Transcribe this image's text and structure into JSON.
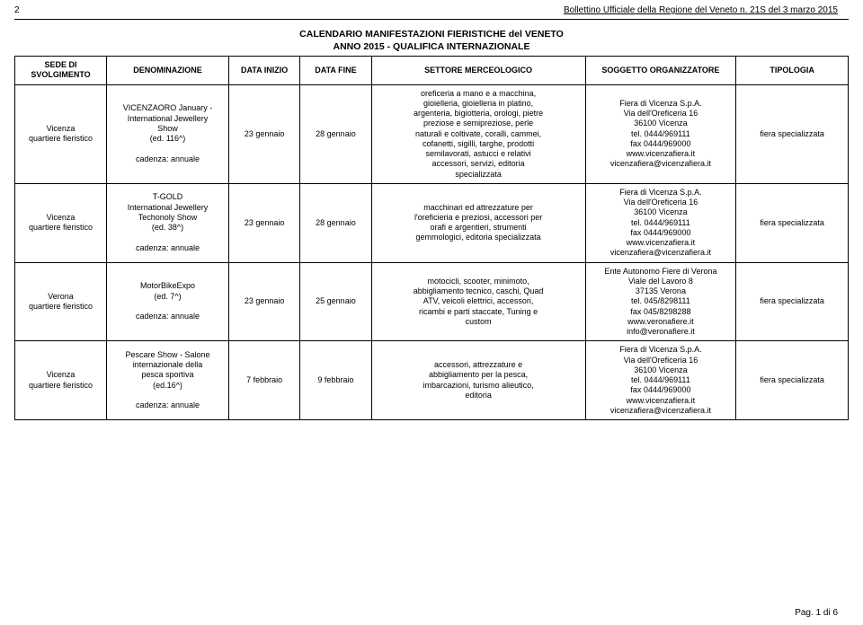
{
  "header_num": "2",
  "header_title": "Bollettino Ufficiale della Regione del Veneto n. 21S del 3 marzo 2015",
  "calendar_title": "CALENDARIO MANIFESTAZIONI FIERISTICHE del VENETO",
  "calendar_subtitle": "ANNO 2015 - QUALIFICA INTERNAZIONALE",
  "columns": {
    "sede": "SEDE DI SVOLGIMENTO",
    "denom": "DENOMINAZIONE",
    "inizio": "DATA INIZIO",
    "fine": "DATA FINE",
    "settore": "SETTORE MERCEOLOGICO",
    "soggetto": "SOGGETTO ORGANIZZATORE",
    "tipologia": "TIPOLOGIA"
  },
  "rows": [
    {
      "sede": "Vicenza\nquartiere fieristico",
      "denom": "VICENZAORO January -\nInternational Jewellery\nShow\n(ed. 116^)\n\ncadenza: annuale",
      "inizio": "23 gennaio",
      "fine": "28 gennaio",
      "settore": "oreficeria a mano e a macchina,\ngioielleria, gioielleria in platino,\nargenteria, bigiotteria, orologi, pietre\npreziose e semipreziose, perle\nnaturali e coltivate, coralli, cammei,\ncofanetti, sigilli, targhe, prodotti\nsemilavorati, astucci e relativi\naccessori, servizi, editoria\nspecializzata",
      "soggetto": "Fiera di Vicenza S.p.A.\nVia dell'Oreficeria 16\n36100 Vicenza\ntel. 0444/969111\nfax 0444/969000\nwww.vicenzafiera.it\nvicenzafiera@vicenzafiera.it",
      "tipologia": "fiera specializzata"
    },
    {
      "sede": "Vicenza\nquartiere fieristico",
      "denom": "T-GOLD\nInternational Jewellery\nTechonoly Show\n(ed. 38^)\n\ncadenza: annuale",
      "inizio": "23 gennaio",
      "fine": "28 gennaio",
      "settore": "macchinari ed attrezzature per\nl'oreficieria e preziosi, accessori per\norafi e argentieri, strumenti\ngemmologici, editoria specializzata",
      "soggetto": "Fiera di Vicenza S.p.A.\nVia dell'Oreficeria 16\n36100 Vicenza\ntel. 0444/969111\nfax 0444/969000\nwww.vicenzafiera.it\nvicenzafiera@vicenzafiera.it",
      "tipologia": "fiera specializzata"
    },
    {
      "sede": "Verona\nquartiere fieristico",
      "denom": "MotorBikeExpo\n(ed. 7^)\n\ncadenza: annuale",
      "inizio": "23 gennaio",
      "fine": "25 gennaio",
      "settore": "motocicli, scooter, minimoto,\nabbigliamento tecnico, caschi, Quad\nATV, veicoli elettrici, accessori,\nricambi e parti staccate, Tuning e\ncustom",
      "soggetto": "Ente Autonomo Fiere di Verona\nViale del Lavoro 8\n37135 Verona\ntel. 045/8298111\nfax 045/8298288\nwww.veronafiere.it\ninfo@veronafiere.it",
      "tipologia": "fiera specializzata"
    },
    {
      "sede": "Vicenza\nquartiere fieristico",
      "denom": "Pescare Show - Salone\ninternazionale della\npesca sportiva\n(ed.16^)\n\ncadenza: annuale",
      "inizio": "7 febbraio",
      "fine": "9 febbraio",
      "settore": "accessori, attrezzature e\nabbigliamento per la pesca,\nimbarcazioni, turismo alieutico,\neditoria",
      "soggetto": "Fiera di Vicenza S.p.A.\nVia dell'Oreficeria 16\n36100 Vicenza\ntel. 0444/969111\nfax 0444/969000\nwww.vicenzafiera.it\nvicenzafiera@vicenzafiera.it",
      "tipologia": "fiera specializzata"
    }
  ],
  "footer": "Pag. 1 di 6"
}
